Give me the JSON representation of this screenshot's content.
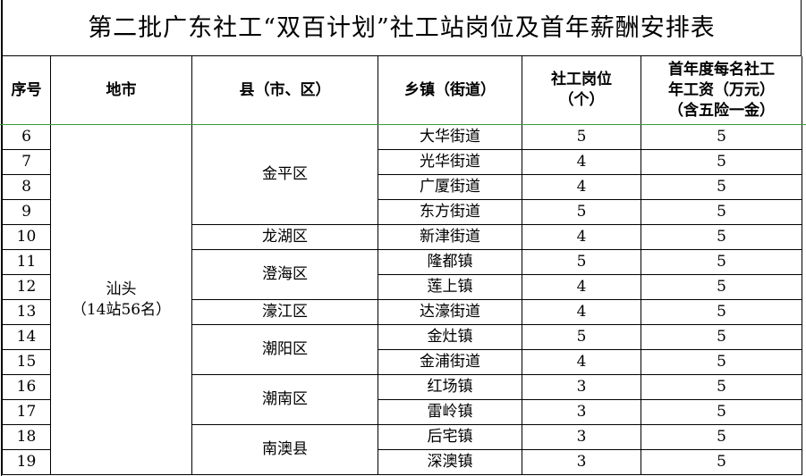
{
  "title": "第二批广东社工“双百计划”社工站岗位及首年薪酬安排表",
  "headers": [
    "序号",
    "地市",
    "县（市、区）",
    "乡镇（街道）",
    "社工岗位（个）",
    "首年度每名社工年工资（万元）（含五险一金）"
  ],
  "header_lines": {
    "posts": [
      "社工岗位",
      "（个）"
    ],
    "salary": [
      "首年度每名社工",
      "年工资（万元）",
      "（含五险一金）"
    ]
  },
  "city": {
    "name": "汕头",
    "note": "（14站56名）"
  },
  "counties": [
    {
      "name": "金平区",
      "rows": 4
    },
    {
      "name": "龙湖区",
      "rows": 1
    },
    {
      "name": "澄海区",
      "rows": 2
    },
    {
      "name": "濠江区",
      "rows": 1
    },
    {
      "name": "潮阳区",
      "rows": 2
    },
    {
      "name": "潮南区",
      "rows": 2
    },
    {
      "name": "南澳县",
      "rows": 2
    }
  ],
  "rows": [
    {
      "no": "6",
      "town": "大华街道",
      "posts": "5",
      "salary": "5"
    },
    {
      "no": "7",
      "town": "光华街道",
      "posts": "4",
      "salary": "5"
    },
    {
      "no": "8",
      "town": "广厦街道",
      "posts": "4",
      "salary": "5"
    },
    {
      "no": "9",
      "town": "东方街道",
      "posts": "5",
      "salary": "5"
    },
    {
      "no": "10",
      "town": "新津街道",
      "posts": "4",
      "salary": "5"
    },
    {
      "no": "11",
      "town": "隆都镇",
      "posts": "5",
      "salary": "5"
    },
    {
      "no": "12",
      "town": "莲上镇",
      "posts": "4",
      "salary": "5"
    },
    {
      "no": "13",
      "town": "达濠街道",
      "posts": "4",
      "salary": "5"
    },
    {
      "no": "14",
      "town": "金灶镇",
      "posts": "5",
      "salary": "5"
    },
    {
      "no": "15",
      "town": "金浦街道",
      "posts": "4",
      "salary": "5"
    },
    {
      "no": "16",
      "town": "红场镇",
      "posts": "3",
      "salary": "5"
    },
    {
      "no": "17",
      "town": "雷岭镇",
      "posts": "3",
      "salary": "5"
    },
    {
      "no": "18",
      "town": "后宅镇",
      "posts": "3",
      "salary": "5"
    },
    {
      "no": "19",
      "town": "深澳镇",
      "posts": "3",
      "salary": "5"
    }
  ]
}
